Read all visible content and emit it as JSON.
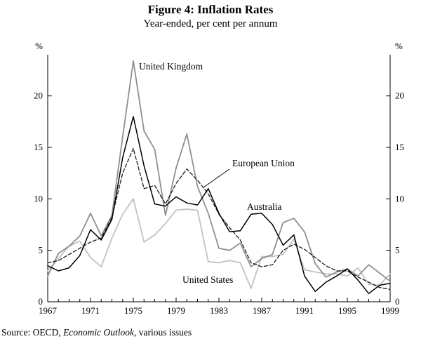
{
  "header": {
    "title": "Figure 4: Inflation Rates",
    "subtitle": "Year-ended, per cent per annum"
  },
  "chart_data": {
    "type": "line",
    "title": "Figure 4: Inflation Rates",
    "subtitle": "Year-ended, per cent per annum",
    "y_unit": "%",
    "ylim": [
      0,
      24
    ],
    "yticks": [
      0,
      5,
      10,
      15,
      20
    ],
    "xticks_labeled": [
      1967,
      1971,
      1975,
      1979,
      1983,
      1987,
      1991,
      1995,
      1999
    ],
    "grid": false,
    "legend": "inline-annotations",
    "x": [
      1967,
      1968,
      1969,
      1970,
      1971,
      1972,
      1973,
      1974,
      1975,
      1976,
      1977,
      1978,
      1979,
      1980,
      1981,
      1982,
      1983,
      1984,
      1985,
      1986,
      1987,
      1988,
      1989,
      1990,
      1991,
      1992,
      1993,
      1994,
      1995,
      1996,
      1997,
      1998,
      1999
    ],
    "series": [
      {
        "name": "United States",
        "color": "#c2c2c2",
        "dash": "none",
        "width": 1.8,
        "values": [
          3.0,
          4.2,
          5.4,
          5.9,
          4.3,
          3.4,
          6.2,
          8.5,
          10.0,
          5.8,
          6.5,
          7.6,
          8.9,
          9.0,
          8.9,
          3.9,
          3.8,
          4.0,
          3.8,
          1.3,
          4.4,
          4.4,
          4.6,
          6.1,
          3.1,
          2.9,
          2.7,
          2.7,
          2.5,
          3.3,
          1.7,
          1.6,
          2.7
        ]
      },
      {
        "name": "United Kingdom",
        "color": "#8f8f8f",
        "dash": "none",
        "width": 1.8,
        "values": [
          2.5,
          4.7,
          5.4,
          6.4,
          8.6,
          6.4,
          8.4,
          16.0,
          23.4,
          16.6,
          14.8,
          8.4,
          13.0,
          16.3,
          11.2,
          8.6,
          5.2,
          5.0,
          5.7,
          3.4,
          4.2,
          4.6,
          7.7,
          8.1,
          6.8,
          3.7,
          2.4,
          2.9,
          3.2,
          2.5,
          3.6,
          2.8,
          2.0
        ]
      },
      {
        "name": "European Union",
        "color": "#1a1a1a",
        "dash": "5,3",
        "width": 1.3,
        "values": [
          3.8,
          4.0,
          4.6,
          5.2,
          5.8,
          6.2,
          8.2,
          12.5,
          14.9,
          11.0,
          11.3,
          9.5,
          11.5,
          12.9,
          11.8,
          10.5,
          8.5,
          7.2,
          6.0,
          3.8,
          3.4,
          3.6,
          5.0,
          5.6,
          5.1,
          4.3,
          3.5,
          3.0,
          3.0,
          2.4,
          1.9,
          1.4,
          1.2
        ]
      },
      {
        "name": "Australia",
        "color": "#000000",
        "dash": "none",
        "width": 1.5,
        "values": [
          3.5,
          3.0,
          3.3,
          4.5,
          7.0,
          6.0,
          8.0,
          14.0,
          18.0,
          13.2,
          9.5,
          9.3,
          10.2,
          9.6,
          9.4,
          11.0,
          8.6,
          6.8,
          6.9,
          8.5,
          8.6,
          7.5,
          5.5,
          6.5,
          2.5,
          1.0,
          1.9,
          2.5,
          3.2,
          2.1,
          0.8,
          1.6,
          1.8
        ]
      }
    ]
  },
  "annotations": {
    "united_kingdom": "United Kingdom",
    "european_union": "European Union",
    "australia": "Australia",
    "united_states": "United States"
  },
  "source": {
    "prefix": "Source: OECD, ",
    "italic": "Economic Outlook,",
    "suffix": " various issues"
  }
}
